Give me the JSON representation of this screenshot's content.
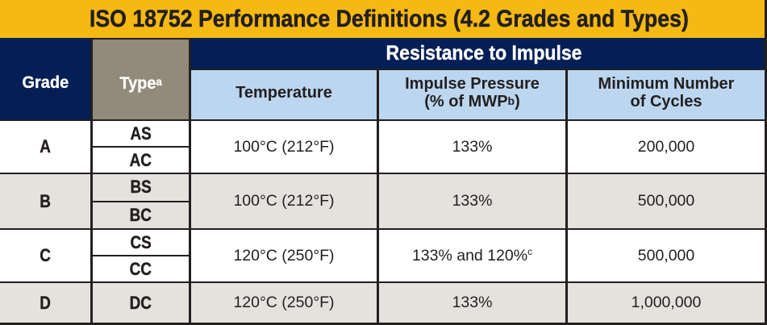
{
  "title": "ISO 18752 Performance Definitions (4.2 Grades and Types)",
  "colors": {
    "gold": "#f5b914",
    "navy": "#041f55",
    "taupe": "#928a7a",
    "lightblue": "#bcd6f0",
    "rowgray": "#e4e2dd",
    "rowwhite": "#ffffff",
    "ink": "#231f20"
  },
  "table": {
    "headers": {
      "grade": "Grade",
      "type": "Type",
      "type_note": "a",
      "impulse_group": "Resistance to Impulse",
      "temperature": "Temperature",
      "impulse_pressure_line1": "Impulse Pressure",
      "impulse_pressure_line2_pre": "(% of MWP",
      "impulse_pressure_note": "b",
      "impulse_pressure_line2_post": ")",
      "cycles_line1": "Minimum Number",
      "cycles_line2": "of Cycles"
    },
    "rows": [
      {
        "grade": "A",
        "types": [
          "AS",
          "AC"
        ],
        "temperature": "100°C (212°F)",
        "impulse_pressure": "133%",
        "impulse_note": "",
        "min_cycles": "200,000"
      },
      {
        "grade": "B",
        "types": [
          "BS",
          "BC"
        ],
        "temperature": "100°C (212°F)",
        "impulse_pressure": "133%",
        "impulse_note": "",
        "min_cycles": "500,000"
      },
      {
        "grade": "C",
        "types": [
          "CS",
          "CC"
        ],
        "temperature": "120°C (250°F)",
        "impulse_pressure": "133% and 120%",
        "impulse_note": "c",
        "min_cycles": "500,000"
      },
      {
        "grade": "D",
        "types": [
          "DC"
        ],
        "temperature": "120°C (250°F)",
        "impulse_pressure": "133%",
        "impulse_note": "",
        "min_cycles": "1,000,000"
      }
    ]
  }
}
